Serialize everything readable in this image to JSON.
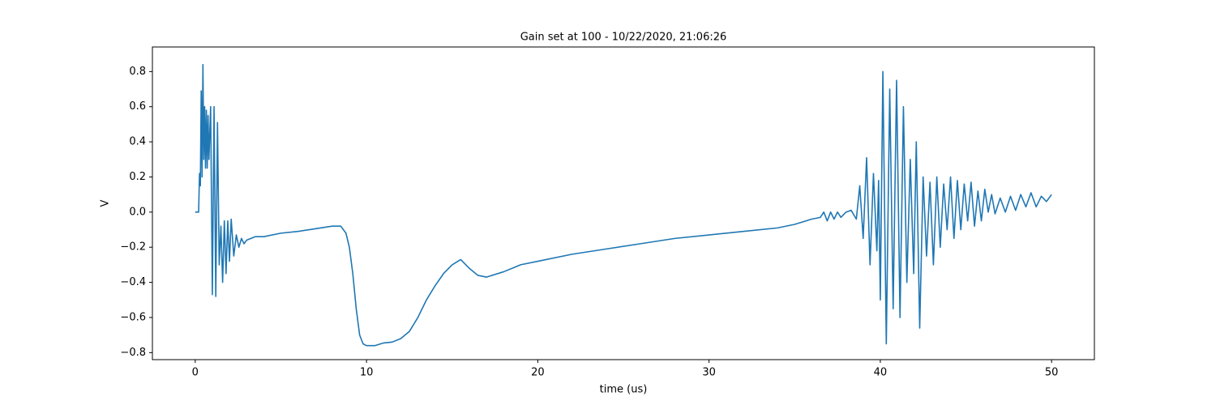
{
  "chart_data": {
    "type": "line",
    "title": "Gain set at 100 - 10/22/2020, 21:06:26",
    "xlabel": "time (us)",
    "ylabel": "V",
    "color": "#1f77b4",
    "xlim": [
      -2.5,
      52.5
    ],
    "ylim": [
      -0.84,
      0.94
    ],
    "xticks": [
      0,
      10,
      20,
      30,
      40,
      50
    ],
    "yticks": [
      {
        "value": -0.8,
        "label": "−0.8"
      },
      {
        "value": -0.6,
        "label": "−0.6"
      },
      {
        "value": -0.4,
        "label": "−0.4"
      },
      {
        "value": -0.2,
        "label": "−0.2"
      },
      {
        "value": 0,
        "label": "0.0"
      },
      0.2,
      0.4,
      0.6,
      0.8
    ],
    "x": [
      0,
      0.2,
      0.25,
      0.3,
      0.35,
      0.4,
      0.45,
      0.5,
      0.55,
      0.6,
      0.65,
      0.7,
      0.75,
      0.8,
      0.9,
      1.0,
      1.1,
      1.2,
      1.3,
      1.4,
      1.5,
      1.6,
      1.7,
      1.8,
      1.9,
      2.0,
      2.1,
      2.25,
      2.4,
      2.55,
      2.7,
      2.85,
      3,
      3.5,
      4,
      5,
      6,
      7,
      8,
      8.5,
      8.8,
      9.0,
      9.2,
      9.4,
      9.6,
      9.8,
      10,
      10.5,
      11,
      11.5,
      12,
      12.5,
      13,
      13.5,
      14,
      14.5,
      15,
      15.5,
      16,
      16.5,
      17,
      18,
      19,
      20,
      22,
      24,
      26,
      28,
      30,
      32,
      34,
      35,
      36,
      36.5,
      36.7,
      36.9,
      37.1,
      37.3,
      37.5,
      37.7,
      38,
      38.3,
      38.6,
      38.8,
      39.0,
      39.2,
      39.4,
      39.6,
      39.8,
      39.9,
      40.0,
      40.15,
      40.35,
      40.55,
      40.75,
      40.95,
      41.15,
      41.35,
      41.55,
      41.75,
      41.95,
      42.1,
      42.3,
      42.5,
      42.7,
      42.9,
      43.1,
      43.3,
      43.5,
      43.7,
      43.9,
      44.1,
      44.3,
      44.5,
      44.7,
      44.9,
      45.1,
      45.3,
      45.5,
      45.7,
      45.9,
      46.1,
      46.3,
      46.5,
      46.7,
      47,
      47.3,
      47.6,
      47.9,
      48.2,
      48.5,
      48.8,
      49.1,
      49.4,
      49.7,
      50
    ],
    "values": [
      0,
      0.0,
      0.22,
      0.15,
      0.69,
      0.2,
      0.84,
      0.3,
      0.6,
      0.25,
      0.58,
      0.25,
      0.55,
      0.3,
      0.6,
      -0.47,
      0.6,
      -0.48,
      0.51,
      -0.3,
      -0.08,
      -0.4,
      -0.05,
      -0.35,
      -0.05,
      -0.28,
      -0.04,
      -0.25,
      -0.13,
      -0.2,
      -0.15,
      -0.18,
      -0.16,
      -0.14,
      -0.14,
      -0.12,
      -0.11,
      -0.095,
      -0.08,
      -0.08,
      -0.12,
      -0.2,
      -0.35,
      -0.55,
      -0.7,
      -0.75,
      -0.76,
      -0.76,
      -0.745,
      -0.74,
      -0.72,
      -0.68,
      -0.6,
      -0.5,
      -0.42,
      -0.35,
      -0.3,
      -0.27,
      -0.32,
      -0.36,
      -0.37,
      -0.34,
      -0.3,
      -0.28,
      -0.24,
      -0.21,
      -0.18,
      -0.15,
      -0.13,
      -0.11,
      -0.09,
      -0.07,
      -0.04,
      -0.03,
      0.0,
      -0.05,
      0.0,
      -0.04,
      0.0,
      -0.03,
      0.0,
      0.01,
      -0.04,
      0.15,
      -0.15,
      0.31,
      -0.3,
      0.22,
      -0.22,
      0.18,
      -0.5,
      0.8,
      -0.75,
      0.7,
      -0.55,
      0.75,
      -0.6,
      0.6,
      -0.4,
      0.3,
      -0.35,
      0.4,
      -0.66,
      0.2,
      -0.25,
      0.17,
      -0.3,
      0.2,
      -0.2,
      0.16,
      -0.1,
      0.2,
      -0.15,
      0.18,
      -0.1,
      0.16,
      -0.05,
      0.17,
      -0.08,
      0.12,
      -0.05,
      0.13,
      0.0,
      0.1,
      -0.01,
      0.08,
      0.0,
      0.09,
      0.01,
      0.1,
      0.03,
      0.11,
      0.03,
      0.09,
      0.06,
      0.1
    ]
  }
}
